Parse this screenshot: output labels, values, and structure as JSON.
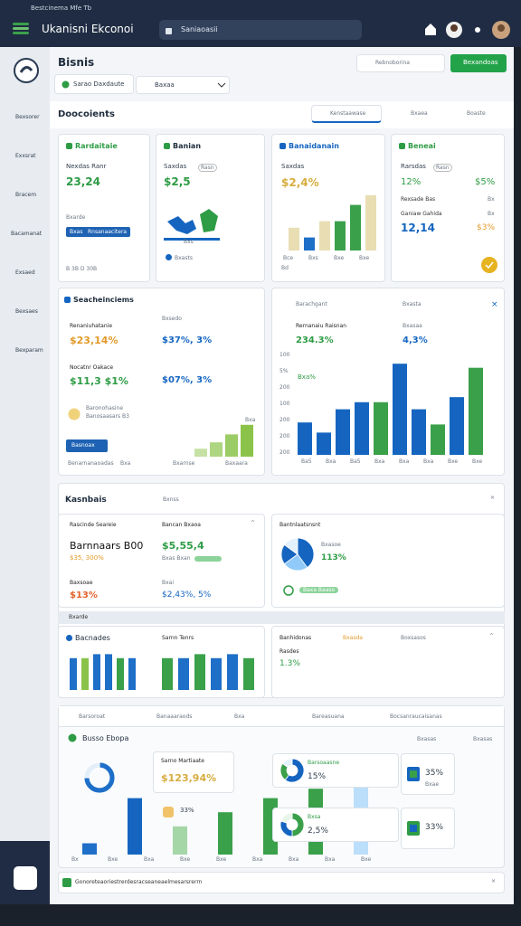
{
  "status_bar": {
    "left": "Bestcinema Mfe Tb"
  },
  "header": {
    "title": "Ukanisni Ekconoi",
    "search": "Saniaoasii"
  },
  "sidebar": {
    "items": [
      "Bexsorer",
      "Exxsrat",
      "Bracem",
      "Bacamanat",
      "Exsaed",
      "Bexsaes",
      "Bexparam"
    ]
  },
  "page": {
    "title": "Bisnis",
    "tabs": [
      "Sarao Daxdaute",
      "Baxaa"
    ],
    "filter": "Rebnoborina",
    "action": "Bexandoas"
  },
  "overview": {
    "title": "Doocoients",
    "tools": [
      "Kenstaawase",
      "Bxaea",
      "Boaste"
    ]
  },
  "cards": [
    {
      "title": "Rardaitaie",
      "label": "Nexdas Ranr",
      "value": "23,24",
      "note": "Bxarde",
      "chips": [
        "Bxas",
        "Rnsanaacitera"
      ],
      "footer": "B 3B D 30B"
    },
    {
      "title": "Banian",
      "label": "Saxdas",
      "badge": "Rasn",
      "value": "$2,5",
      "map_label": "Bxs",
      "legend": "Bxasts"
    },
    {
      "title": "Banaidanain",
      "label": "Saxdas",
      "value": "$2,4%",
      "chart": {
        "values": [
          35,
          20,
          45,
          45,
          70,
          85
        ],
        "colors": [
          "#e9ddb3",
          "#1e6fc8",
          "#e9ddb3",
          "#3aa04a",
          "#3aa04a",
          "#e9ddb3"
        ],
        "ylim": [
          0,
          100
        ]
      },
      "axis_labels": [
        "Bce",
        "Bxs",
        "Bxe",
        "Bxe"
      ],
      "foot": "Bd"
    },
    {
      "title": "Beneai",
      "label": "Rarsdas",
      "badge": "Rasn",
      "value": "12%",
      "value2": "$5%",
      "label2": "Rexsade Bas",
      "label2b": "Bx",
      "label3": "Ganiaw Gahida",
      "label3b": "Bx",
      "value3": "12,14",
      "value4": "$3%"
    }
  ],
  "summary": {
    "title": "Seacheinciems",
    "items": [
      {
        "label": "Renaniuhatanie",
        "value": "$23,14%",
        "label_b": "Bxsedo",
        "value_b": "$37%, 3%"
      },
      {
        "label": "Nocatnr Oakace",
        "value": "$11,3 $1%",
        "value_b": "$07%, 3%"
      }
    ],
    "note": "Baronohasine",
    "note2": "Banosaasars B3",
    "button": "Basnoax",
    "chart": {
      "values": [
        10,
        18,
        28,
        40
      ],
      "colors": [
        "#c5e1a5",
        "#aed581",
        "#9ccc65",
        "#8bc34a"
      ],
      "ylim": [
        0,
        50
      ]
    },
    "chart_label": "Bxa",
    "footer": [
      "Benarnanaoadas",
      "Bxa",
      "Bxarnse",
      "Baxaara"
    ]
  },
  "trend": {
    "title": "Barachgant",
    "link": "Bxasta",
    "items": [
      {
        "label": "Rernanaiu Raisnan",
        "value": "234.3%"
      },
      {
        "label": "Bxasaa",
        "value": "4,3%"
      }
    ],
    "y_labels": [
      "100",
      "5%",
      "200",
      "100",
      "200",
      "200",
      "200"
    ],
    "inner": "Bxa%",
    "chart": {
      "values": [
        32,
        22,
        45,
        52,
        52,
        90,
        45,
        30,
        57,
        86
      ],
      "colors": [
        "#1565c0",
        "#1565c0",
        "#1565c0",
        "#1565c0",
        "#3aa04a",
        "#1565c0",
        "#1565c0",
        "#3aa04a",
        "#1565c0",
        "#3aa04a"
      ],
      "ylim": [
        0,
        100
      ]
    },
    "x_labels": [
      "Ba5",
      "Bxa",
      "Ba5",
      "Bxa",
      "Bxa",
      "Bxa",
      "Bxe",
      "Bxe"
    ]
  },
  "kpi": {
    "title": "Kasnbais",
    "hint": "Bxnss",
    "left": {
      "label": "Rascinde Seareie",
      "label_b": "Bancan Bxaoa",
      "value": "Barnnaars B00",
      "value_b": "$5,55,4",
      "sub": "$35, 300%",
      "sub_b": "Bxas Bxan",
      "label2": "Baxsoae",
      "value2": "$13%",
      "label2b": "Bxai",
      "value2b": "$2,43%, 5%"
    },
    "right": {
      "title": "Bantnlaatsnsnt",
      "label": "Bxasoe",
      "value": "113%",
      "note": "Baxa Baaso",
      "pie": {
        "values": [
          40,
          25,
          20,
          15
        ],
        "colors": [
          "#1565c0",
          "#90caf9",
          "#1565c0",
          "#e3f2fd"
        ]
      }
    }
  },
  "kpi_band": "Bxarde",
  "lower": {
    "left": {
      "title": "Bacnades",
      "title_b": "Sarnn Tenrs",
      "chart_a": {
        "values": [
          40,
          40,
          45,
          45,
          40,
          40
        ],
        "colors": [
          "#1e6fc8",
          "#8bc34a",
          "#1e6fc8",
          "#1e6fc8",
          "#3aa04a",
          "#1e6fc8"
        ],
        "ylim": [
          0,
          50
        ]
      },
      "chart_b": {
        "values": [
          40,
          40,
          45,
          40,
          45,
          40
        ],
        "colors": [
          "#3aa04a",
          "#1e6fc8",
          "#3aa04a",
          "#1e6fc8",
          "#1e6fc8",
          "#3aa04a"
        ],
        "ylim": [
          0,
          50
        ]
      }
    },
    "right": {
      "title": "Banhidonas",
      "tag": "Bxasda",
      "link": "Boxsasos",
      "label": "Rasdes",
      "value": "1.3%"
    }
  },
  "bottom": {
    "tabs": [
      "Barsoroat",
      "Banaaaraods",
      "Bxa",
      "Bareasuana",
      "Bocsanraucaisanas"
    ],
    "title": "Busso Ebopa",
    "tag": "Bxasas",
    "tag2": "Bxasas",
    "card": {
      "title": "Sarno Martiaate",
      "value": "$123,94%",
      "badge": "33%"
    },
    "ring": {
      "values": [
        75,
        25
      ],
      "colors": [
        "#1e6fc8",
        "#e3eef9"
      ]
    },
    "donut_a": {
      "label": "Barsoaasne",
      "value": "15%",
      "values": [
        60,
        25,
        15
      ],
      "colors": [
        "#1565c0",
        "#3aa04a",
        "#e3f2fd"
      ]
    },
    "donut_b": {
      "label": "Bxsa",
      "value": "2,5%",
      "values": [
        50,
        30,
        20
      ],
      "colors": [
        "#3aa04a",
        "#1565c0",
        "#e8f5e9"
      ]
    },
    "item_a": {
      "value": "35%",
      "label": "Bxae"
    },
    "item_b": {
      "value": "33%"
    },
    "chart": {
      "values": [
        12,
        60,
        30,
        45,
        60,
        70,
        90
      ],
      "colors": [
        "#1e6fc8",
        "#1565c0",
        "#a5d6a7",
        "#3aa04a",
        "#3aa04a",
        "#3aa04a",
        "#bbdefb"
      ],
      "ylim": [
        0,
        100
      ]
    },
    "x_labels": [
      "Bx",
      "Bxe",
      "Bxa",
      "Bxe",
      "Bxe",
      "Bxa",
      "Bxa",
      "Bxa",
      "Bxe"
    ]
  },
  "footer_bar": {
    "text": "Gonoreteaoriestrerdesracseaneaelmesarsrerrn"
  }
}
